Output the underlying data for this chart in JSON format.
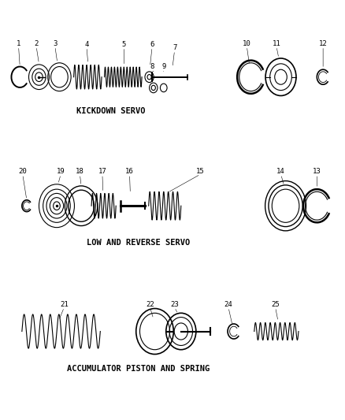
{
  "bg_color": "#ffffff",
  "line_color": "#000000",
  "fig_width": 4.38,
  "fig_height": 5.33,
  "dpi": 100,
  "title1": "KICKDOWN SERVO",
  "title2": "LOW AND REVERSE SERVO",
  "title3": "ACCUMULATOR PISTON AND SPRING",
  "title_fontsize": 7.5,
  "label_fontsize": 6.5
}
